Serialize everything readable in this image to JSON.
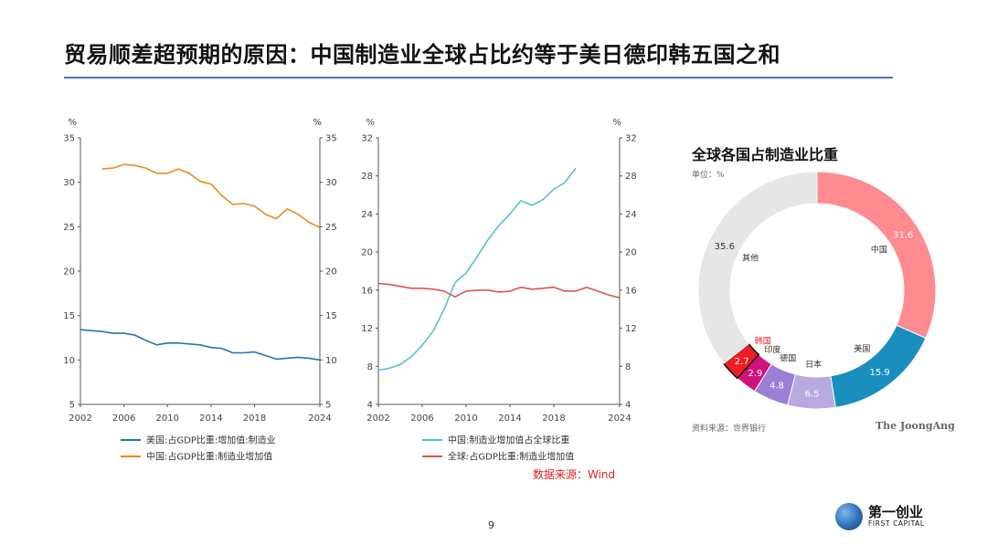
{
  "page": {
    "title": "贸易顺差超预期的原因：中国制造业全球占比约等于美日德印韩五国之和",
    "source_note": "数据来源：Wind",
    "page_number": "9",
    "logo_cn": "第一创业",
    "logo_en": "FIRST CAPITAL"
  },
  "colors": {
    "us_line": "#2a74a8",
    "us_mfg_line": "#ec8b1f",
    "china_share_line": "#5bbfcf",
    "global_line": "#e05252",
    "title_rule": "#4d6fd0"
  },
  "chart_data": [
    {
      "type": "line",
      "left_axis_unit": "%",
      "right_axis_unit": "%",
      "xlim": [
        2002,
        2024
      ],
      "ylim": [
        5,
        35
      ],
      "x_ticks": [
        "2002",
        "2006",
        "2010",
        "2014",
        "2018",
        "2024"
      ],
      "y_ticks": [
        "5",
        "10",
        "15",
        "20",
        "25",
        "30",
        "35"
      ],
      "series": [
        {
          "name": "美国:占GDP比重:增加值:制造业",
          "color": "#2a74a8",
          "x": [
            2002,
            2003,
            2004,
            2005,
            2006,
            2007,
            2008,
            2009,
            2010,
            2011,
            2012,
            2013,
            2014,
            2015,
            2016,
            2017,
            2018,
            2019,
            2020,
            2021,
            2022,
            2023,
            2024
          ],
          "y": [
            13.4,
            13.3,
            13.2,
            13.0,
            13.0,
            12.8,
            12.2,
            11.7,
            11.9,
            11.9,
            11.8,
            11.7,
            11.4,
            11.3,
            10.8,
            10.8,
            10.9,
            10.5,
            10.1,
            10.2,
            10.3,
            10.2,
            10.0
          ]
        },
        {
          "name": "中国:占GDP比重:制造业增加值",
          "color": "#ec8b1f",
          "x": [
            2004,
            2005,
            2006,
            2007,
            2008,
            2009,
            2010,
            2011,
            2012,
            2013,
            2014,
            2015,
            2016,
            2017,
            2018,
            2019,
            2020,
            2021,
            2022,
            2023,
            2024
          ],
          "y": [
            31.5,
            31.6,
            32.0,
            31.9,
            31.6,
            31.0,
            31.0,
            31.5,
            31.0,
            30.1,
            29.8,
            28.5,
            27.5,
            27.6,
            27.3,
            26.4,
            25.9,
            27.0,
            26.4,
            25.5,
            24.9
          ]
        }
      ]
    },
    {
      "type": "line",
      "left_axis_unit": "%",
      "right_axis_unit": "%",
      "xlim": [
        2002,
        2024
      ],
      "ylim": [
        4,
        32
      ],
      "x_ticks": [
        "2002",
        "2006",
        "2010",
        "2014",
        "2018",
        "2024"
      ],
      "y_ticks": [
        "4",
        "8",
        "12",
        "16",
        "20",
        "24",
        "28",
        "32"
      ],
      "series": [
        {
          "name": "中国:制造业增加值占全球比重",
          "color": "#5bbfcf",
          "x": [
            2002,
            2003,
            2004,
            2005,
            2006,
            2007,
            2008,
            2009,
            2010,
            2011,
            2012,
            2013,
            2014,
            2015,
            2016,
            2017,
            2018,
            2019,
            2020
          ],
          "y": [
            7.6,
            7.8,
            8.2,
            9.0,
            10.2,
            11.7,
            14.0,
            16.8,
            17.8,
            19.5,
            21.3,
            22.8,
            24.0,
            25.4,
            24.9,
            25.5,
            26.6,
            27.3,
            28.8
          ]
        },
        {
          "name": "全球:占GDP比重:制造业增加值",
          "color": "#e05252",
          "x": [
            2002,
            2003,
            2004,
            2005,
            2006,
            2007,
            2008,
            2009,
            2010,
            2011,
            2012,
            2013,
            2014,
            2015,
            2016,
            2017,
            2018,
            2019,
            2020,
            2021,
            2022,
            2023,
            2024
          ],
          "y": [
            16.7,
            16.6,
            16.4,
            16.2,
            16.2,
            16.1,
            15.9,
            15.3,
            15.9,
            16.0,
            16.0,
            15.8,
            15.9,
            16.3,
            16.1,
            16.2,
            16.3,
            15.9,
            15.9,
            16.3,
            15.9,
            15.5,
            15.2
          ]
        }
      ]
    },
    {
      "type": "pie",
      "title": "全球各国占制造业比重",
      "unit_label": "单位：%",
      "source": "资料来源：世界银行",
      "brand": "The JoongAng",
      "slices": [
        {
          "label": "中国",
          "value": 31.6,
          "color": "#ff8a8f"
        },
        {
          "label": "美国",
          "value": 15.9,
          "color": "#1a8fbf"
        },
        {
          "label": "日本",
          "value": 6.5,
          "color": "#b8a9de"
        },
        {
          "label": "德国",
          "value": 4.8,
          "color": "#9a7fd6"
        },
        {
          "label": "印度",
          "value": 2.9,
          "color": "#d0127a"
        },
        {
          "label": "韩国",
          "value": 2.7,
          "color": "#ee1d23"
        },
        {
          "label": "其他",
          "value": 35.6,
          "color": "#e6e6e6"
        }
      ]
    }
  ]
}
